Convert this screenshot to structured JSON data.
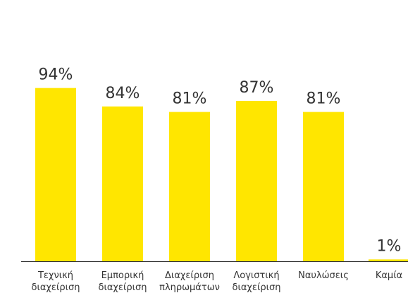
{
  "chart_data": {
    "type": "bar",
    "categories": [
      [
        "Τεχνική",
        "διαχείριση"
      ],
      [
        "Εμπορική",
        "διαχείριση"
      ],
      [
        "Διαχείριση",
        "πληρωμάτων"
      ],
      [
        "Λογιστική",
        "διαχείριση"
      ],
      [
        "Ναυλώσεις"
      ],
      [
        "Καμία"
      ]
    ],
    "values": [
      94,
      84,
      81,
      87,
      81,
      1
    ],
    "value_labels": [
      "94%",
      "84%",
      "81%",
      "87%",
      "81%",
      "1%"
    ],
    "ylim": [
      0,
      100
    ],
    "grid": false,
    "legend": "none",
    "bar_color": "#FFE600",
    "axis_color": "#333333",
    "text_color": "#333333"
  }
}
